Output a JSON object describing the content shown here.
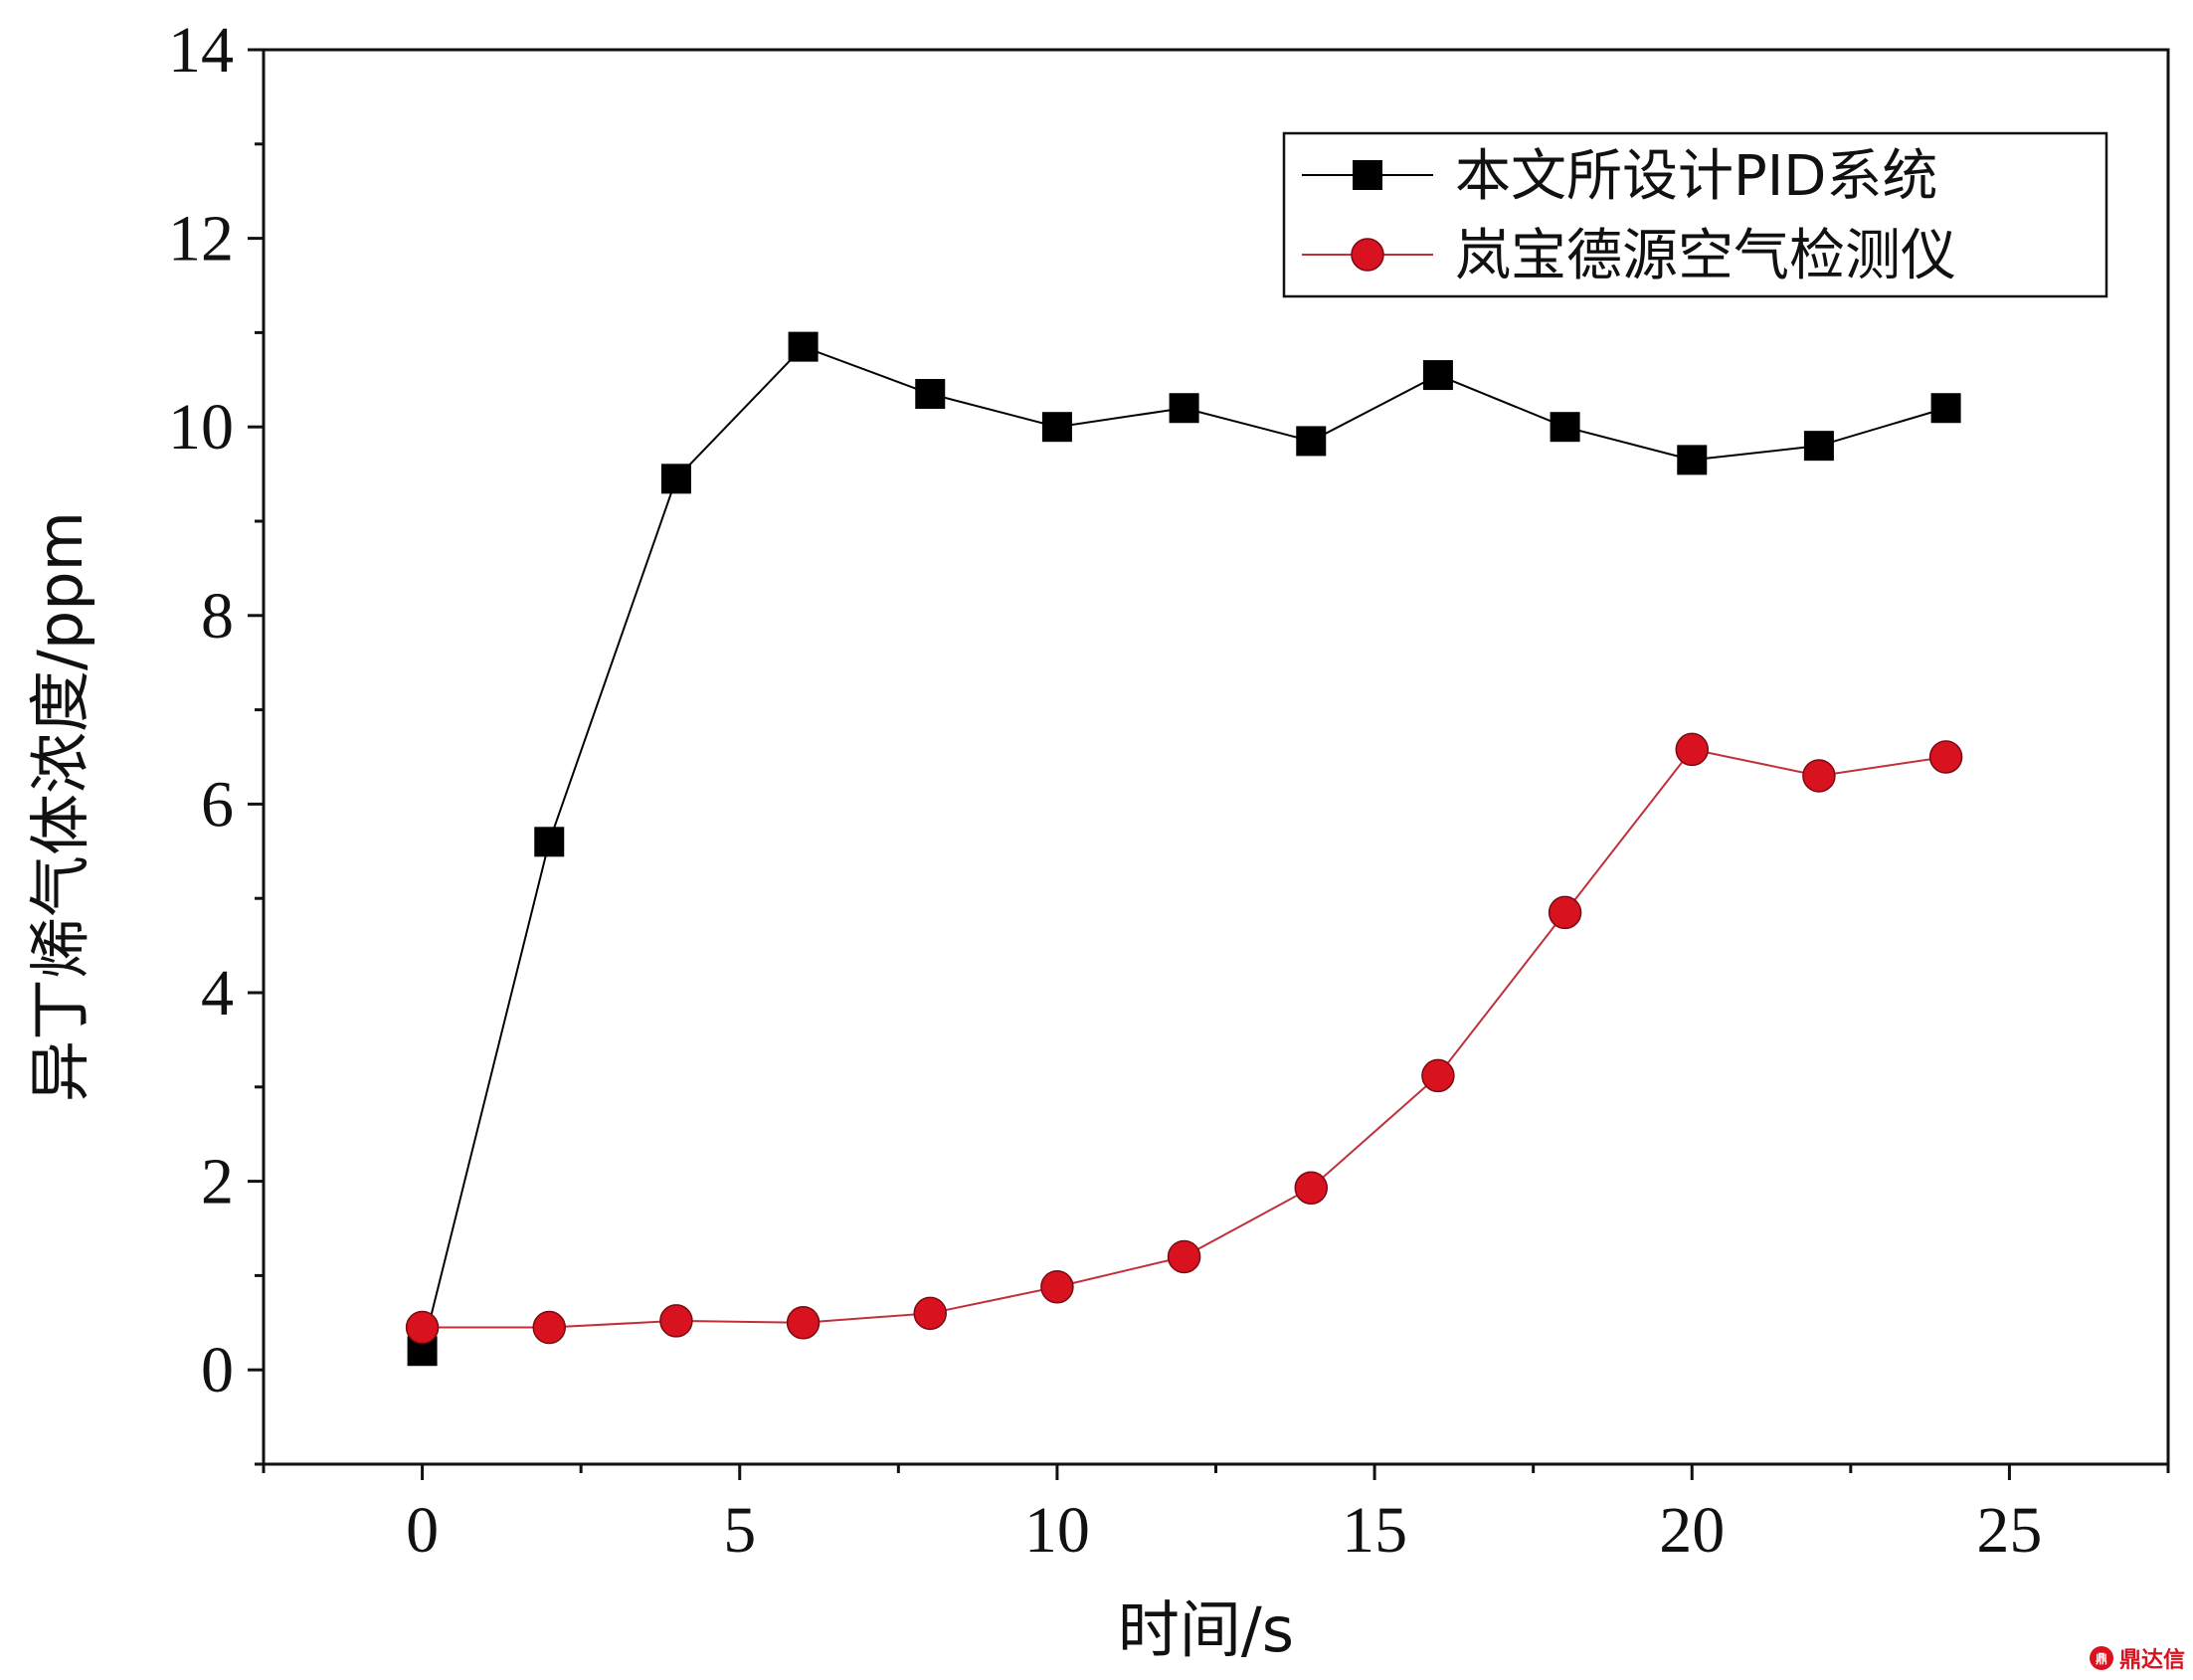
{
  "chart_data": {
    "type": "line",
    "xlabel": "时间/s",
    "ylabel": "异丁烯气体浓度/ppm",
    "xlim": [
      -2.5,
      27.5
    ],
    "ylim": [
      -1,
      14
    ],
    "xticks": [
      0,
      5,
      10,
      15,
      20,
      25
    ],
    "yticks": [
      0,
      2,
      4,
      6,
      8,
      10,
      12,
      14
    ],
    "legend_position": "top-right",
    "grid": false,
    "x": [
      0,
      2,
      4,
      6,
      8,
      10,
      12,
      14,
      16,
      18,
      20,
      22,
      24
    ],
    "series": [
      {
        "name": "本文所设计PID系统",
        "marker": "square",
        "color": "#000000",
        "values": [
          0.2,
          5.6,
          9.45,
          10.85,
          10.35,
          10.0,
          10.2,
          9.85,
          10.55,
          10.0,
          9.65,
          9.8,
          10.2
        ]
      },
      {
        "name": "岚宝德源空气检测仪",
        "marker": "circle",
        "color": "#d9121f",
        "line_color": "#c0303a",
        "values": [
          0.45,
          0.45,
          0.52,
          0.5,
          0.6,
          0.88,
          1.2,
          1.93,
          3.12,
          4.85,
          6.58,
          6.3,
          6.5
        ]
      }
    ]
  },
  "watermark": {
    "logo": "鼎",
    "text": "鼎达信"
  }
}
